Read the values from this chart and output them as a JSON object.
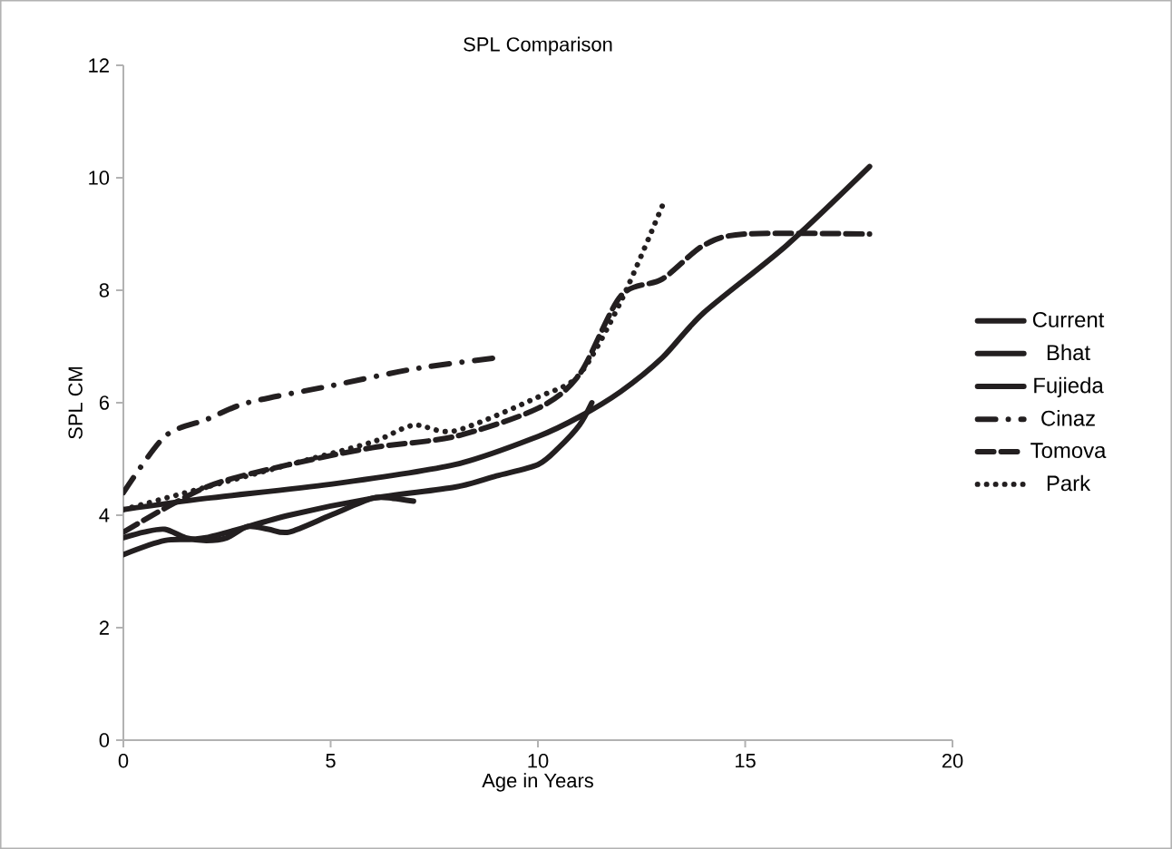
{
  "chart_data": {
    "type": "line",
    "title": "SPL Comparison",
    "xlabel": "Age in Years",
    "ylabel": "SPL CM",
    "xlim": [
      0,
      20
    ],
    "xticks": [
      0,
      5,
      10,
      15,
      20
    ],
    "ylim": [
      0,
      12
    ],
    "yticks": [
      0,
      2,
      4,
      6,
      8,
      10,
      12
    ],
    "legend": "right",
    "grid": false,
    "marker": "none",
    "series": [
      {
        "name": "Current",
        "color": "#231f20",
        "line_style": "solid",
        "x": [
          0,
          2,
          5,
          8,
          10,
          11,
          12,
          13,
          14,
          16,
          18
        ],
        "values": [
          4.1,
          4.3,
          4.55,
          4.9,
          5.4,
          5.75,
          6.2,
          6.8,
          7.6,
          8.8,
          10.2
        ]
      },
      {
        "name": "Bhat",
        "color": "#231f20",
        "line_style": "solid",
        "x": [
          0,
          1,
          2,
          4,
          6,
          8,
          9,
          10,
          10.5,
          11,
          11.3
        ],
        "values": [
          3.3,
          3.55,
          3.6,
          4.0,
          4.3,
          4.5,
          4.7,
          4.9,
          5.2,
          5.6,
          6.0
        ]
      },
      {
        "name": "Fujieda",
        "color": "#231f20",
        "line_style": "solid",
        "x": [
          0,
          0.5,
          1,
          1.5,
          2,
          2.5,
          3,
          3.5,
          4,
          5,
          6,
          6.5,
          7
        ],
        "values": [
          3.6,
          3.7,
          3.75,
          3.6,
          3.55,
          3.6,
          3.8,
          3.75,
          3.7,
          4.0,
          4.3,
          4.3,
          4.25
        ]
      },
      {
        "name": "Cinaz",
        "color": "#231f20",
        "line_style": "dashdot",
        "x": [
          0,
          1,
          2,
          3,
          5,
          7,
          9
        ],
        "values": [
          4.4,
          5.4,
          5.7,
          6.0,
          6.3,
          6.6,
          6.8
        ]
      },
      {
        "name": "Tomova",
        "color": "#231f20",
        "line_style": "dashed",
        "x": [
          0,
          2,
          4,
          6,
          8,
          10,
          11,
          12,
          13,
          14,
          15,
          18
        ],
        "values": [
          3.7,
          4.5,
          4.9,
          5.2,
          5.4,
          5.9,
          6.5,
          7.9,
          8.2,
          8.8,
          9.0,
          9.0
        ]
      },
      {
        "name": "Park",
        "color": "#231f20",
        "line_style": "dotted",
        "x": [
          0,
          2,
          4,
          6,
          7,
          8,
          10,
          11,
          12,
          13
        ],
        "values": [
          4.1,
          4.5,
          4.9,
          5.3,
          5.6,
          5.5,
          6.1,
          6.5,
          7.8,
          9.5
        ]
      }
    ]
  }
}
